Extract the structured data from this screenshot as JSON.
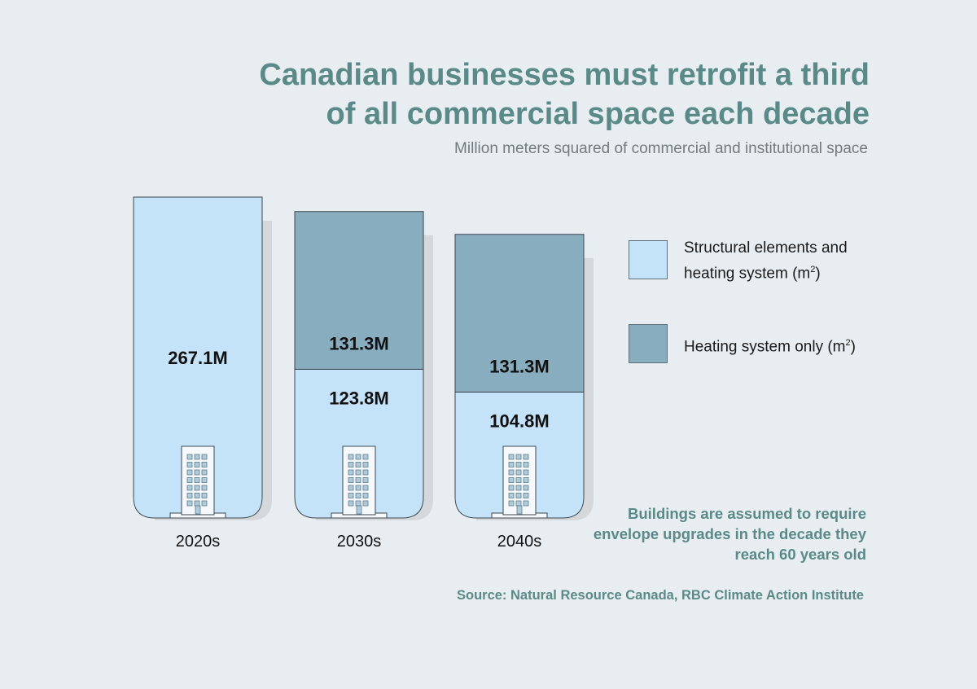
{
  "title_line1": "Canadian businesses must retrofit a third",
  "title_line2": "of all commercial space each decade",
  "subtitle": "Million meters squared of commercial and institutional space",
  "legend": {
    "items": [
      {
        "label": "Structural elements and heating system (m",
        "sup": "2",
        "suffix": ")",
        "color": "#c5e3f8"
      },
      {
        "label": "Heating system only (m",
        "sup": "2",
        "suffix": ")",
        "color": "#88adbe"
      }
    ]
  },
  "note": "Buildings are assumed to require envelope upgrades in the decade they reach 60 years old",
  "source": "Source: Natural Resource Canada, RBC Climate Action Institute",
  "colors": {
    "structural": "#c5e3f8",
    "heating": "#88adbe",
    "shadow": "#d4d8db",
    "outline": "#3c4750",
    "building": "#f6f9fb",
    "window": "#aecbdc"
  },
  "icon": "office-building-icon",
  "chart_data": {
    "type": "bar",
    "stacked": true,
    "title": "Canadian businesses must retrofit a third of all commercial space each decade",
    "subtitle": "Million meters squared of commercial and institutional space",
    "categories": [
      "2020s",
      "2030s",
      "2040s"
    ],
    "series": [
      {
        "name": "Structural elements and heating system (m2)",
        "values": [
          267.1,
          123.8,
          104.8
        ],
        "labels": [
          "267.1M",
          "123.8M",
          "104.8M"
        ]
      },
      {
        "name": "Heating system only (m2)",
        "values": [
          0,
          131.3,
          131.3
        ],
        "labels": [
          "",
          "131.3M",
          "131.3M"
        ]
      }
    ],
    "legend_position": "right",
    "grid": false
  }
}
